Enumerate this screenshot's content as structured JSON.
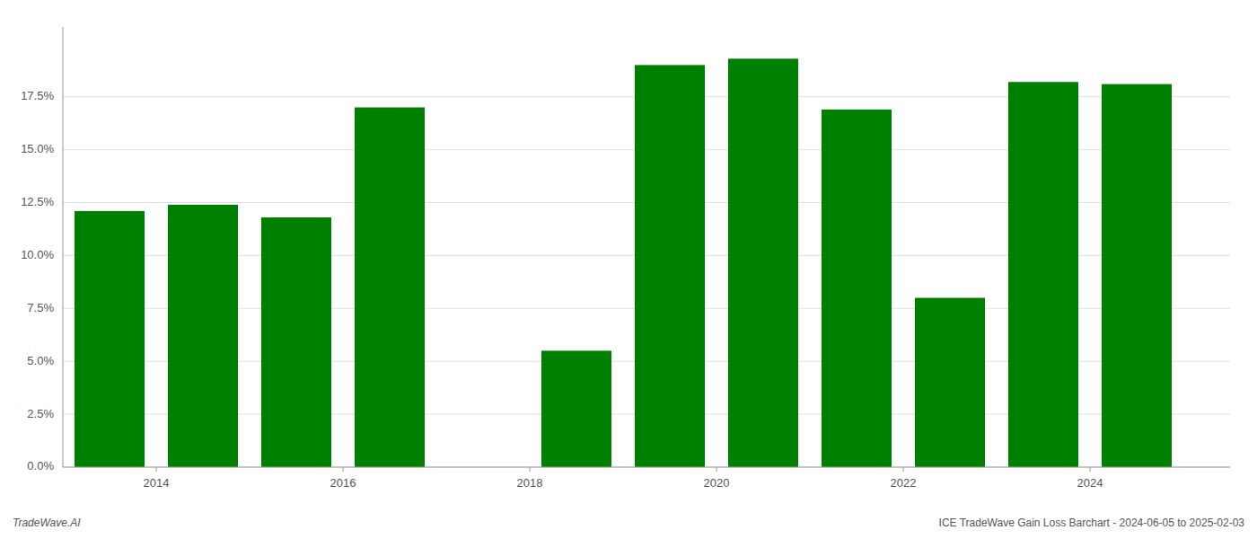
{
  "chart_data": {
    "type": "bar",
    "x": [
      2013,
      2014,
      2015,
      2016,
      2018,
      2019,
      2020,
      2021,
      2022,
      2023,
      2024
    ],
    "values": [
      0.121,
      0.124,
      0.118,
      0.17,
      0.055,
      0.19,
      0.193,
      0.169,
      0.08,
      0.182,
      0.181
    ],
    "color": "#008000",
    "xlim": [
      2012.5,
      2025.0
    ],
    "xticks": [
      {
        "value": 2013.5,
        "label": "2014"
      },
      {
        "value": 2015.5,
        "label": "2016"
      },
      {
        "value": 2017.5,
        "label": "2018"
      },
      {
        "value": 2019.5,
        "label": "2020"
      },
      {
        "value": 2021.5,
        "label": "2022"
      },
      {
        "value": 2023.5,
        "label": "2024"
      }
    ],
    "ylim": [
      0,
      0.208
    ],
    "yticks": [
      {
        "value": 0.0,
        "label": "0.0%"
      },
      {
        "value": 0.025,
        "label": "2.5%"
      },
      {
        "value": 0.05,
        "label": "5.0%"
      },
      {
        "value": 0.075,
        "label": "7.5%"
      },
      {
        "value": 0.1,
        "label": "10.0%"
      },
      {
        "value": 0.125,
        "label": "12.5%"
      },
      {
        "value": 0.15,
        "label": "15.0%"
      },
      {
        "value": 0.175,
        "label": "17.5%"
      }
    ],
    "grid": true,
    "annotations": [
      "TradeWave.AI",
      "ICE TradeWave Gain Loss Barchart - 2024-06-05 to 2025-02-03"
    ]
  }
}
